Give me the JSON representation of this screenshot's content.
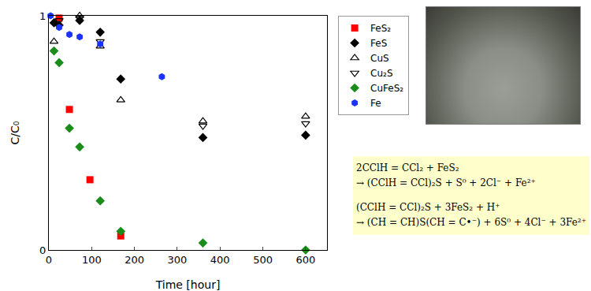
{
  "chart_data": {
    "type": "scatter",
    "x_label": "Time [hour]",
    "y_label": "C/C₀",
    "xlim": [
      0,
      650
    ],
    "xticks": [
      0,
      100,
      200,
      300,
      400,
      500,
      600
    ],
    "ylim": [
      0,
      1
    ],
    "yticks": [
      0,
      1
    ],
    "grid": false,
    "legend": "right",
    "series": [
      {
        "name": "FeS₂",
        "color": "#ff0000",
        "marker": "square",
        "x": [
          24,
          48,
          96,
          168
        ],
        "values": [
          0.99,
          0.6,
          0.3,
          0.06
        ]
      },
      {
        "name": "FeS",
        "color": "#000000",
        "marker": "diamond",
        "x": [
          12,
          24,
          72,
          120,
          168,
          360,
          600
        ],
        "values": [
          0.97,
          0.96,
          0.98,
          0.93,
          0.73,
          0.48,
          0.49
        ]
      },
      {
        "name": "CuS",
        "color": "#000000",
        "marker": "triangle-up-open",
        "x": [
          12,
          72,
          120,
          168,
          360,
          600
        ],
        "values": [
          0.89,
          1.0,
          0.87,
          0.64,
          0.55,
          0.57
        ]
      },
      {
        "name": "Cu₂S",
        "color": "#000000",
        "marker": "triangle-down-open",
        "x": [
          24,
          72,
          120,
          360,
          600
        ],
        "values": [
          0.98,
          0.99,
          0.89,
          0.53,
          0.54
        ]
      },
      {
        "name": "CuFeS₂",
        "color": "#1a8c1a",
        "marker": "diamond",
        "x": [
          12,
          24,
          48,
          72,
          120,
          168,
          360,
          600
        ],
        "values": [
          0.85,
          0.8,
          0.52,
          0.44,
          0.21,
          0.08,
          0.03,
          0.0
        ]
      },
      {
        "name": "Fe",
        "color": "#1a33ff",
        "marker": "hexagon",
        "x": [
          4,
          24,
          48,
          72,
          120,
          264
        ],
        "values": [
          1.0,
          0.95,
          0.92,
          0.91,
          0.88,
          0.74
        ]
      }
    ]
  },
  "equations": [
    [
      "2CClH = CCl₂ + FeS₂",
      "→ (CClH = CCl)₂S + S⁰ + 2Cl⁻ + Fe²⁺"
    ],
    [
      "(CClH = CCl)₂S + 3FeS₂ + H⁺",
      "→ (CH = CH)S(CH = C•⁻) + 6S⁰ + 4Cl⁻ + 3Fe²⁺"
    ]
  ]
}
